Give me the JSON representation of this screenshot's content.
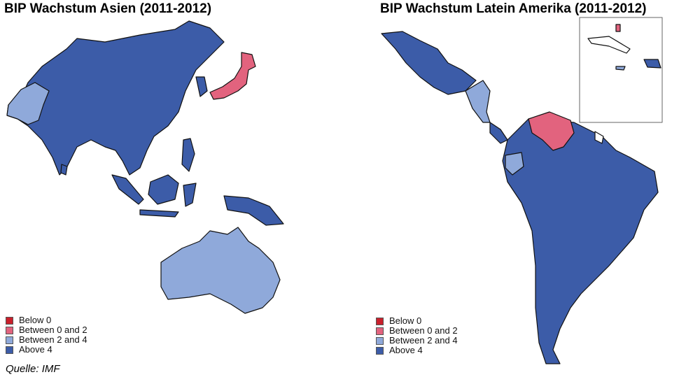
{
  "maps": [
    {
      "title": "BIP Wachstum Asien (2011-2012)"
    },
    {
      "title": "BIP Wachstum Latein Amerika (2011-2012)"
    }
  ],
  "legend": [
    {
      "label": "Below 0",
      "color": "#c9202c"
    },
    {
      "label": "Between 0 and 2",
      "color": "#e2637e"
    },
    {
      "label": "Between 2 and 4",
      "color": "#8fa9da"
    },
    {
      "label": "Above 4",
      "color": "#3c5ca8"
    }
  ],
  "source": "Quelle: IMF"
}
